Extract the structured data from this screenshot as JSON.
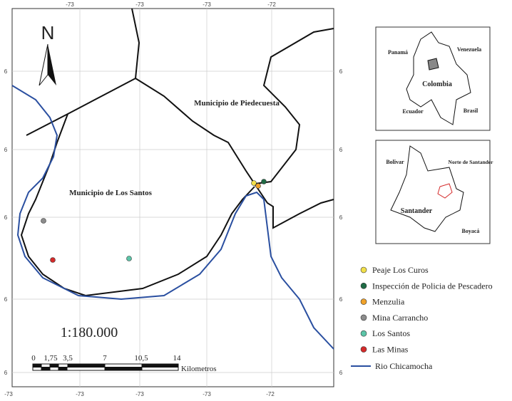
{
  "axes": {
    "top": [
      "-73",
      "-73",
      "-73",
      "-72"
    ],
    "bottom": [
      "-73",
      "-73",
      "-73",
      "-73",
      "-72"
    ],
    "left": [
      "6",
      "6",
      "6",
      "6",
      "6"
    ],
    "right": [
      "6",
      "6",
      "6",
      "6",
      "6"
    ]
  },
  "map": {
    "north": "N",
    "labels": [
      "Municipio de Piedecuesta",
      "Municipio de Los Santos"
    ],
    "scale_ratio": "1:180.000",
    "scale_ticks": [
      "0",
      "1,75",
      "3,5",
      "7",
      "10,5",
      "14"
    ],
    "scale_unit": "Kilometros"
  },
  "inset_country": [
    "Panamá",
    "Venezuela",
    "Colombia",
    "Ecuador",
    "Brasil"
  ],
  "inset_region": [
    "Bolivar",
    "Norte de Santander",
    "Santander",
    "Boyacá"
  ],
  "legend": [
    {
      "label": "Peaje Los Curos",
      "color": "#f2e04a"
    },
    {
      "label": "Inspección de Policia de Pescadero",
      "color": "#1f6b45"
    },
    {
      "label": "Menzulia",
      "color": "#f0a22a"
    },
    {
      "label": "Mina Carrancho",
      "color": "#8c8c8c"
    },
    {
      "label": "Los Santos",
      "color": "#5cc5a8"
    },
    {
      "label": "Las Minas",
      "color": "#d42a2a"
    }
  ],
  "river": "Rio Chicamocha"
}
